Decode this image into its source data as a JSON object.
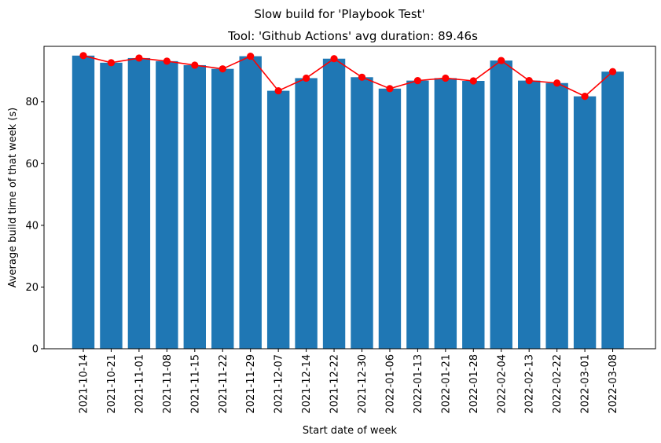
{
  "chart_data": {
    "type": "bar",
    "suptitle": "Slow build for 'Playbook Test'",
    "title": "Tool: 'Github Actions' avg duration: 89.46s",
    "xlabel": "Start date of week",
    "ylabel": "Average build time of that week (s)",
    "ylim": [
      0,
      98
    ],
    "yticks": [
      0,
      20,
      40,
      60,
      80
    ],
    "categories": [
      "2021-10-14",
      "2021-10-21",
      "2021-11-01",
      "2021-11-08",
      "2021-11-15",
      "2021-11-22",
      "2021-11-29",
      "2021-12-07",
      "2021-12-14",
      "2021-12-22",
      "2021-12-30",
      "2022-01-06",
      "2022-01-13",
      "2022-01-21",
      "2022-01-28",
      "2022-02-04",
      "2022-02-13",
      "2022-02-22",
      "2022-03-01",
      "2022-03-08"
    ],
    "series": [
      {
        "type": "bar",
        "color": "#1f77b4",
        "values": [
          95.0,
          92.7,
          94.2,
          93.2,
          91.9,
          90.7,
          94.8,
          83.6,
          87.7,
          94.0,
          88.0,
          84.3,
          86.9,
          87.7,
          86.8,
          93.4,
          86.9,
          86.1,
          81.8,
          89.8
        ]
      },
      {
        "type": "line",
        "color": "#ff0000",
        "marker": "circle",
        "values": [
          95.0,
          92.7,
          94.2,
          93.2,
          91.9,
          90.7,
          94.8,
          83.6,
          87.7,
          94.0,
          88.0,
          84.3,
          86.9,
          87.7,
          86.8,
          93.4,
          86.9,
          86.1,
          81.8,
          89.8
        ]
      }
    ],
    "grid": false,
    "legend": "none"
  }
}
